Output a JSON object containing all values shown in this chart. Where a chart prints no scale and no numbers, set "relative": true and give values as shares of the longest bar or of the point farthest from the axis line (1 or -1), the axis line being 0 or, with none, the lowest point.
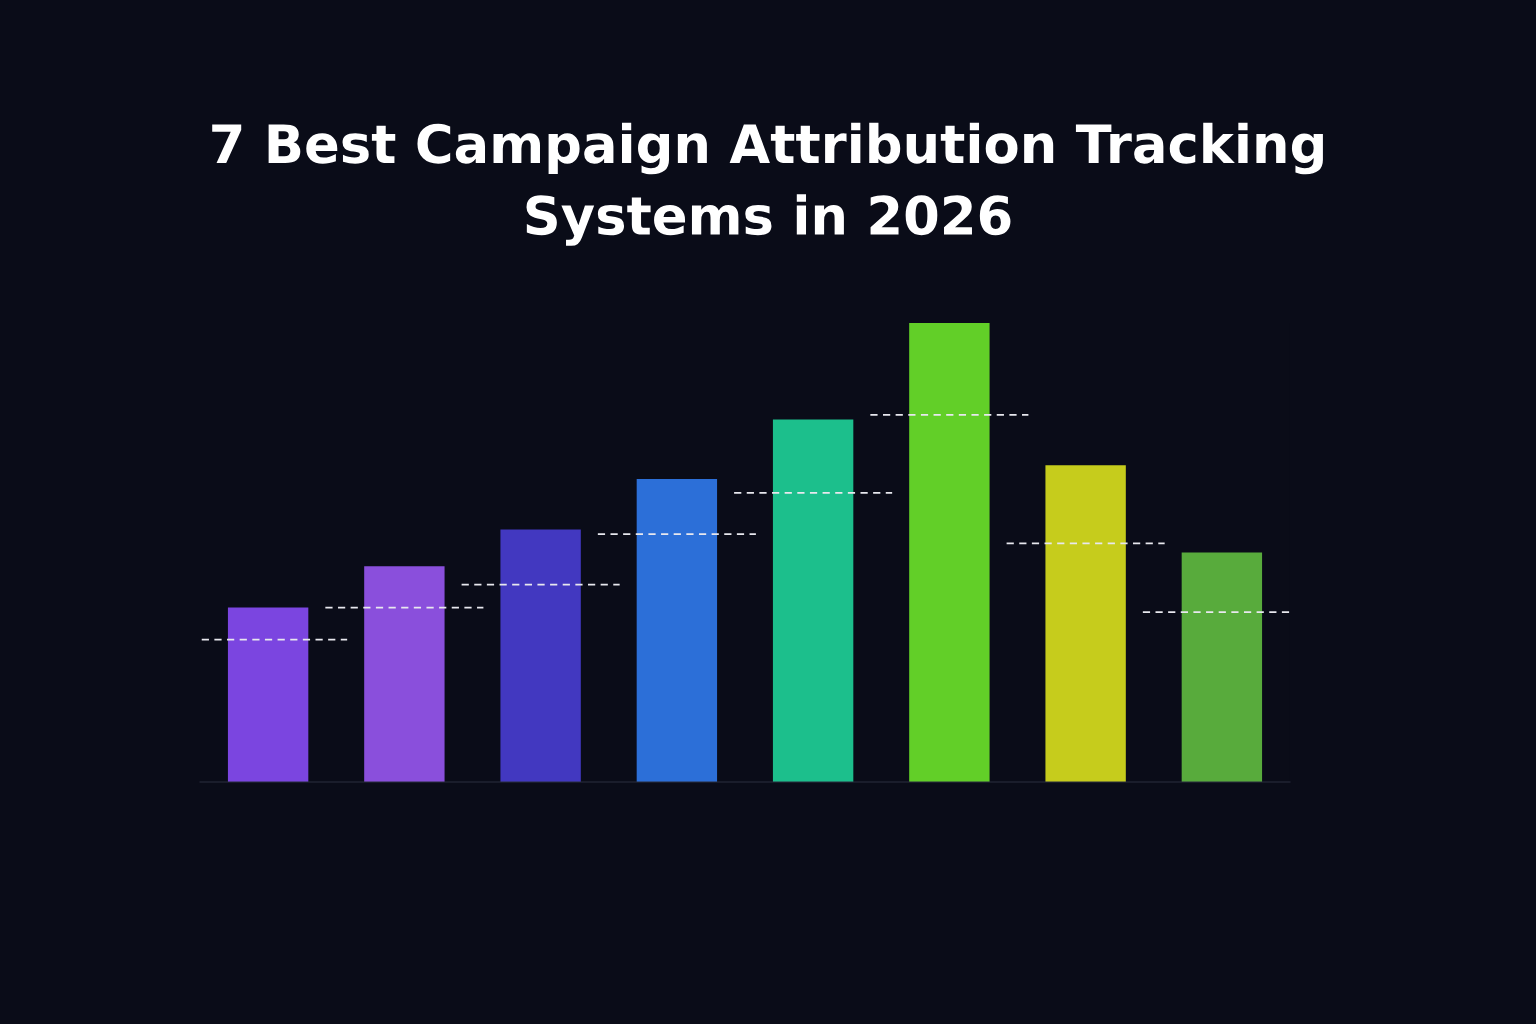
{
  "chart_data": {
    "type": "bar",
    "title": "7 Best Campaign Attribution Tracking Systems in 2026",
    "relative": true,
    "categories": [
      null,
      null,
      null,
      null,
      null,
      null,
      null,
      null
    ],
    "series": [
      {
        "colors": [
          "#7b45e0",
          "#8a4fdc",
          "#4238c0",
          "#2c6fd8",
          "#1cbf8c",
          "#62cf28",
          "#c6cc1c",
          "#58ab3c"
        ],
        "values": [
          0.38,
          0.47,
          0.55,
          0.66,
          0.79,
          1,
          0.69,
          0.5
        ]
      }
    ]
  }
}
